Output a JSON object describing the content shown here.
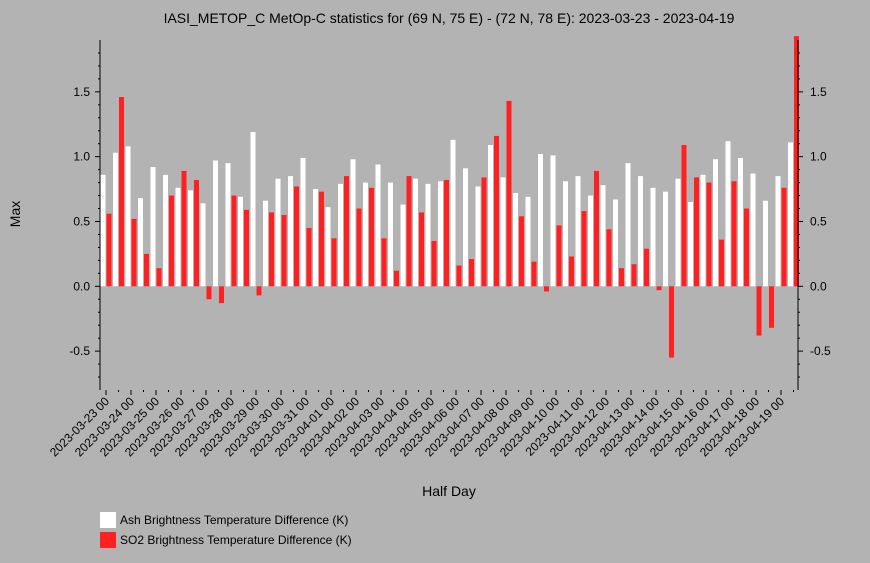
{
  "chart_data": {
    "type": "bar",
    "title": "IASI_METOP_C MetOp-C statistics for (69 N, 75 E) - (72 N, 78 E): 2023-03-23 - 2023-04-19",
    "xlabel": "Half Day",
    "ylabel": "Max",
    "ylim": [
      -0.8,
      1.9
    ],
    "yticks": [
      "-0.5",
      "0.0",
      "0.5",
      "1.0",
      "1.5"
    ],
    "yticks_right": [
      "-0.5",
      "0.0",
      "0.5",
      "1.0",
      "1.5"
    ],
    "x_tick_labels": [
      "2023-03-23 00",
      "2023-03-24 00",
      "2023-03-25 00",
      "2023-03-26 00",
      "2023-03-27 00",
      "2023-03-28 00",
      "2023-03-29 00",
      "2023-03-30 00",
      "2023-03-31 00",
      "2023-04-01 00",
      "2023-04-02 00",
      "2023-04-03 00",
      "2023-04-04 00",
      "2023-04-05 00",
      "2023-04-06 00",
      "2023-04-07 00",
      "2023-04-08 00",
      "2023-04-09 00",
      "2023-04-10 00",
      "2023-04-11 00",
      "2023-04-12 00",
      "2023-04-13 00",
      "2023-04-14 00",
      "2023-04-15 00",
      "2023-04-16 00",
      "2023-04-17 00",
      "2023-04-18 00",
      "2023-04-19 00"
    ],
    "legend_position": "bottom-left",
    "series": [
      {
        "name": "Ash Brightness Temperature Difference (K)",
        "color": "#ffffff",
        "values": [
          0.86,
          1.03,
          1.08,
          0.68,
          0.92,
          0.86,
          0.76,
          0.74,
          0.64,
          0.97,
          0.95,
          0.69,
          1.19,
          0.66,
          0.83,
          0.85,
          0.99,
          0.75,
          0.61,
          0.79,
          0.98,
          0.8,
          0.94,
          0.8,
          0.63,
          0.83,
          0.79,
          0.81,
          1.13,
          0.91,
          0.77,
          1.09,
          0.84,
          0.72,
          0.69,
          1.02,
          1.01,
          0.81,
          0.85,
          0.7,
          0.78,
          0.67,
          0.95,
          0.85,
          0.76,
          0.73,
          0.83,
          0.65,
          0.86,
          0.98,
          1.12,
          0.99,
          0.87,
          0.66,
          0.85,
          1.11
        ]
      },
      {
        "name": "SO2 Brightness Temperature Difference (K)",
        "color": "#ff2121",
        "values": [
          0.56,
          1.46,
          0.52,
          0.25,
          0.14,
          0.7,
          0.89,
          0.82,
          -0.1,
          -0.13,
          0.7,
          0.59,
          -0.07,
          0.57,
          0.55,
          0.77,
          0.45,
          0.73,
          0.37,
          0.85,
          0.6,
          0.76,
          0.37,
          0.12,
          0.85,
          0.57,
          0.35,
          0.82,
          0.16,
          0.21,
          0.84,
          1.16,
          1.43,
          0.54,
          0.19,
          -0.04,
          0.47,
          0.23,
          0.58,
          0.89,
          0.44,
          0.14,
          0.17,
          0.29,
          -0.03,
          -0.55,
          1.09,
          0.84,
          0.8,
          0.36,
          0.81,
          0.6,
          -0.38,
          -0.32,
          0.76,
          1.93
        ]
      }
    ]
  }
}
